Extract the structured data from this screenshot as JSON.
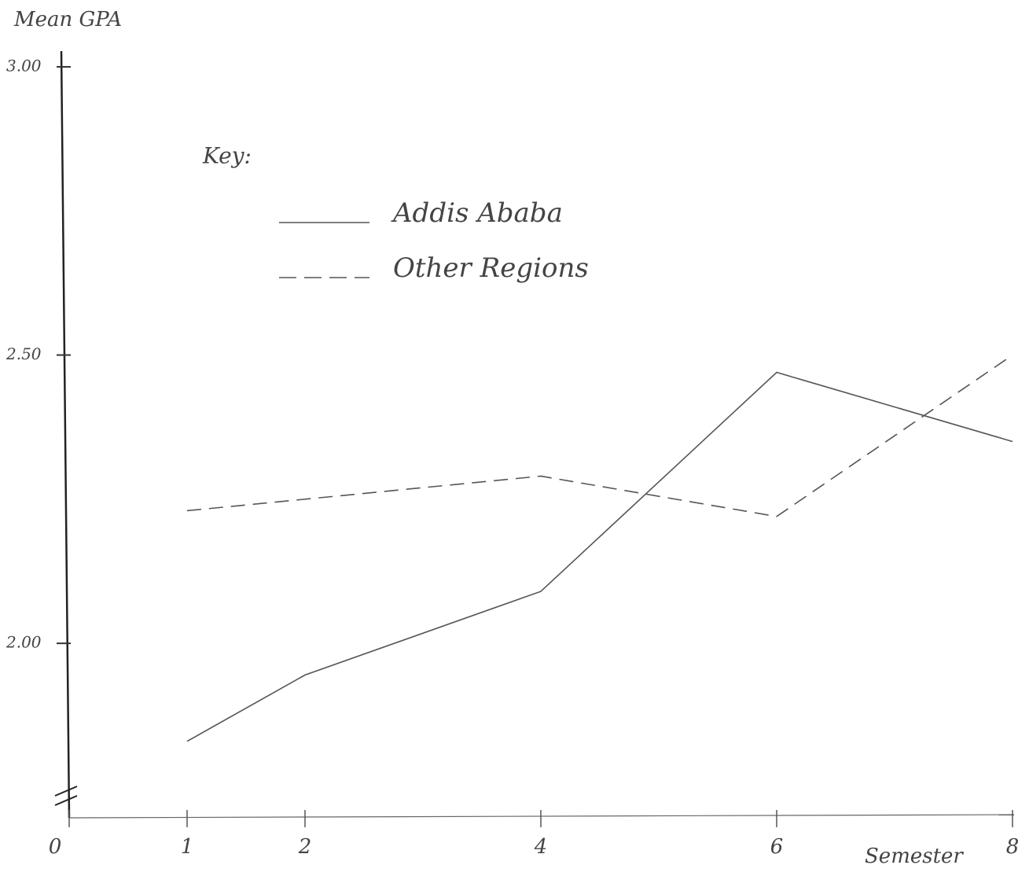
{
  "chart_data": {
    "type": "line",
    "y_label": "Mean GPA",
    "x_label": "Semester",
    "legend_title": "Key:",
    "series": [
      {
        "name": "Addis Ababa",
        "color": "#555555",
        "line_style": "solid",
        "x": [
          1,
          2,
          4,
          6,
          8
        ],
        "values": [
          1.83,
          1.945,
          2.09,
          2.47,
          2.35
        ]
      },
      {
        "name": "Other Regions",
        "color": "#555555",
        "line_style": "dashed",
        "x": [
          1,
          4,
          6,
          8
        ],
        "values": [
          2.23,
          2.29,
          2.22,
          2.5
        ]
      }
    ],
    "xlim": [
      0,
      8
    ],
    "xticks": [
      0,
      1,
      2,
      4,
      6,
      8
    ],
    "ylim": [
      1.7,
      3.0
    ],
    "yticks": [
      {
        "value": 2,
        "label": "2.00"
      },
      {
        "value": 2.5,
        "label": "2.50"
      },
      {
        "value": 3,
        "label": "3.00"
      }
    ],
    "grid": false
  }
}
